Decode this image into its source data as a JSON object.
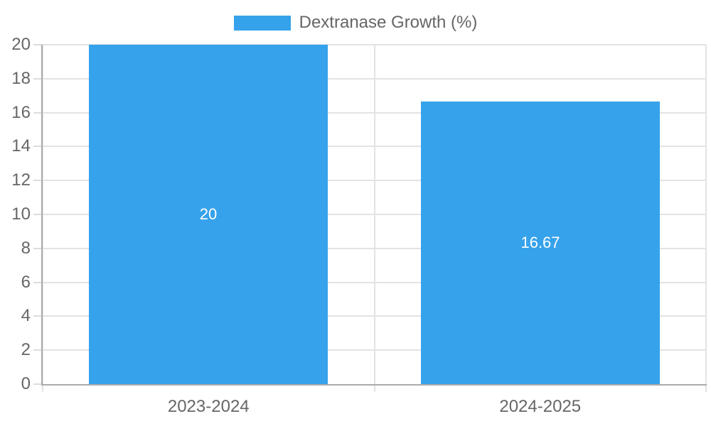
{
  "chart_data": {
    "type": "bar",
    "title": "",
    "legend": {
      "label": "Dextranase Growth (%)",
      "position": "top"
    },
    "categories": [
      "2023-2024",
      "2024-2025"
    ],
    "series": [
      {
        "name": "Dextranase Growth (%)",
        "values": [
          20,
          16.67
        ],
        "color": "#36A2EB"
      }
    ],
    "value_labels": [
      "20",
      "16.67"
    ],
    "xlabel": "",
    "ylabel": "",
    "ylim": [
      0,
      20
    ],
    "ytick_step": 2,
    "yticks": [
      0,
      2,
      4,
      6,
      8,
      10,
      12,
      14,
      16,
      18,
      20
    ],
    "grid": true,
    "colors": {
      "bar": "#36A2EB",
      "text": "#666666",
      "grid": "#e3e3e3",
      "axis": "#ababab",
      "value_label": "#ffffff",
      "background": "#ffffff"
    }
  }
}
